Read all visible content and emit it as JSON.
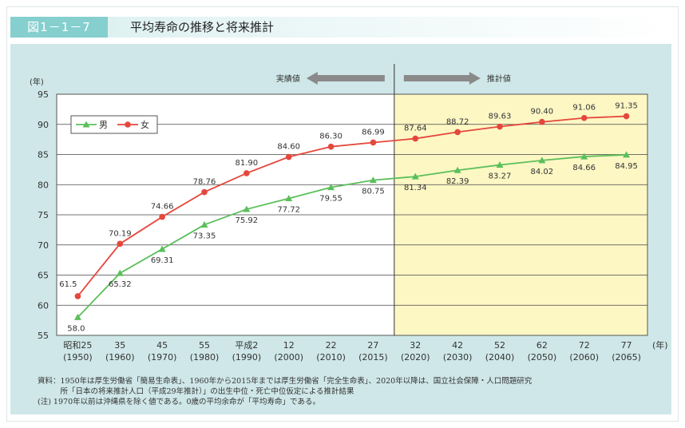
{
  "header": {
    "figure_number": "図1－1－7",
    "title": "平均寿命の推移と将来推計"
  },
  "chart_data": {
    "type": "line",
    "y_unit": "(年)",
    "x_unit": "(年)",
    "ylim": [
      55,
      95
    ],
    "yticks": [
      55,
      60,
      65,
      70,
      75,
      80,
      85,
      90,
      95
    ],
    "grid": true,
    "legend_position": "top-left",
    "categories": [
      {
        "era": "昭和25",
        "year": "(1950)"
      },
      {
        "era": "35",
        "year": "(1960)"
      },
      {
        "era": "45",
        "year": "(1970)"
      },
      {
        "era": "55",
        "year": "(1980)"
      },
      {
        "era": "平成2",
        "year": "(1990)"
      },
      {
        "era": "12",
        "year": "(2000)"
      },
      {
        "era": "22",
        "year": "(2010)"
      },
      {
        "era": "27",
        "year": "(2015)"
      },
      {
        "era": "32",
        "year": "(2020)"
      },
      {
        "era": "42",
        "year": "(2030)"
      },
      {
        "era": "52",
        "year": "(2040)"
      },
      {
        "era": "62",
        "year": "(2050)"
      },
      {
        "era": "72",
        "year": "(2060)"
      },
      {
        "era": "77",
        "year": "(2065)"
      }
    ],
    "series": [
      {
        "name": "男",
        "color": "#5bbf5b",
        "marker": "triangle",
        "values": [
          58.0,
          65.32,
          69.31,
          73.35,
          75.92,
          77.72,
          79.55,
          80.75,
          81.34,
          82.39,
          83.27,
          84.02,
          84.66,
          84.95
        ],
        "labels": [
          "58.0",
          "65.32",
          "69.31",
          "73.35",
          "75.92",
          "77.72",
          "79.55",
          "80.75",
          "81.34",
          "82.39",
          "83.27",
          "84.02",
          "84.66",
          "84.95"
        ]
      },
      {
        "name": "女",
        "color": "#e5473c",
        "marker": "circle",
        "values": [
          61.5,
          70.19,
          74.66,
          78.76,
          81.9,
          84.6,
          86.3,
          86.99,
          87.64,
          88.72,
          89.63,
          90.4,
          91.06,
          91.35
        ],
        "labels": [
          "61.5",
          "70.19",
          "74.66",
          "78.76",
          "81.90",
          "84.60",
          "86.30",
          "86.99",
          "87.64",
          "88.72",
          "89.63",
          "90.40",
          "91.06",
          "91.35"
        ]
      }
    ],
    "projection_start_index": 8,
    "projection_fill": "#fdf7c4",
    "actual_label": "実績値",
    "projection_label": "推計値"
  },
  "notes": [
    "資料：1950年は厚生労働省「簡易生命表」、1960年から2015年までは厚生労働省「完全生命表」、2020年以降は、国立社会保障・人口問題研究",
    "　　　所「日本の将来推計人口（平成29年推計）」の出生中位・死亡中位仮定による推計結果",
    "(注) 1970年以前は沖縄県を除く値である。0歳の平均余命が「平均寿命」である。"
  ]
}
